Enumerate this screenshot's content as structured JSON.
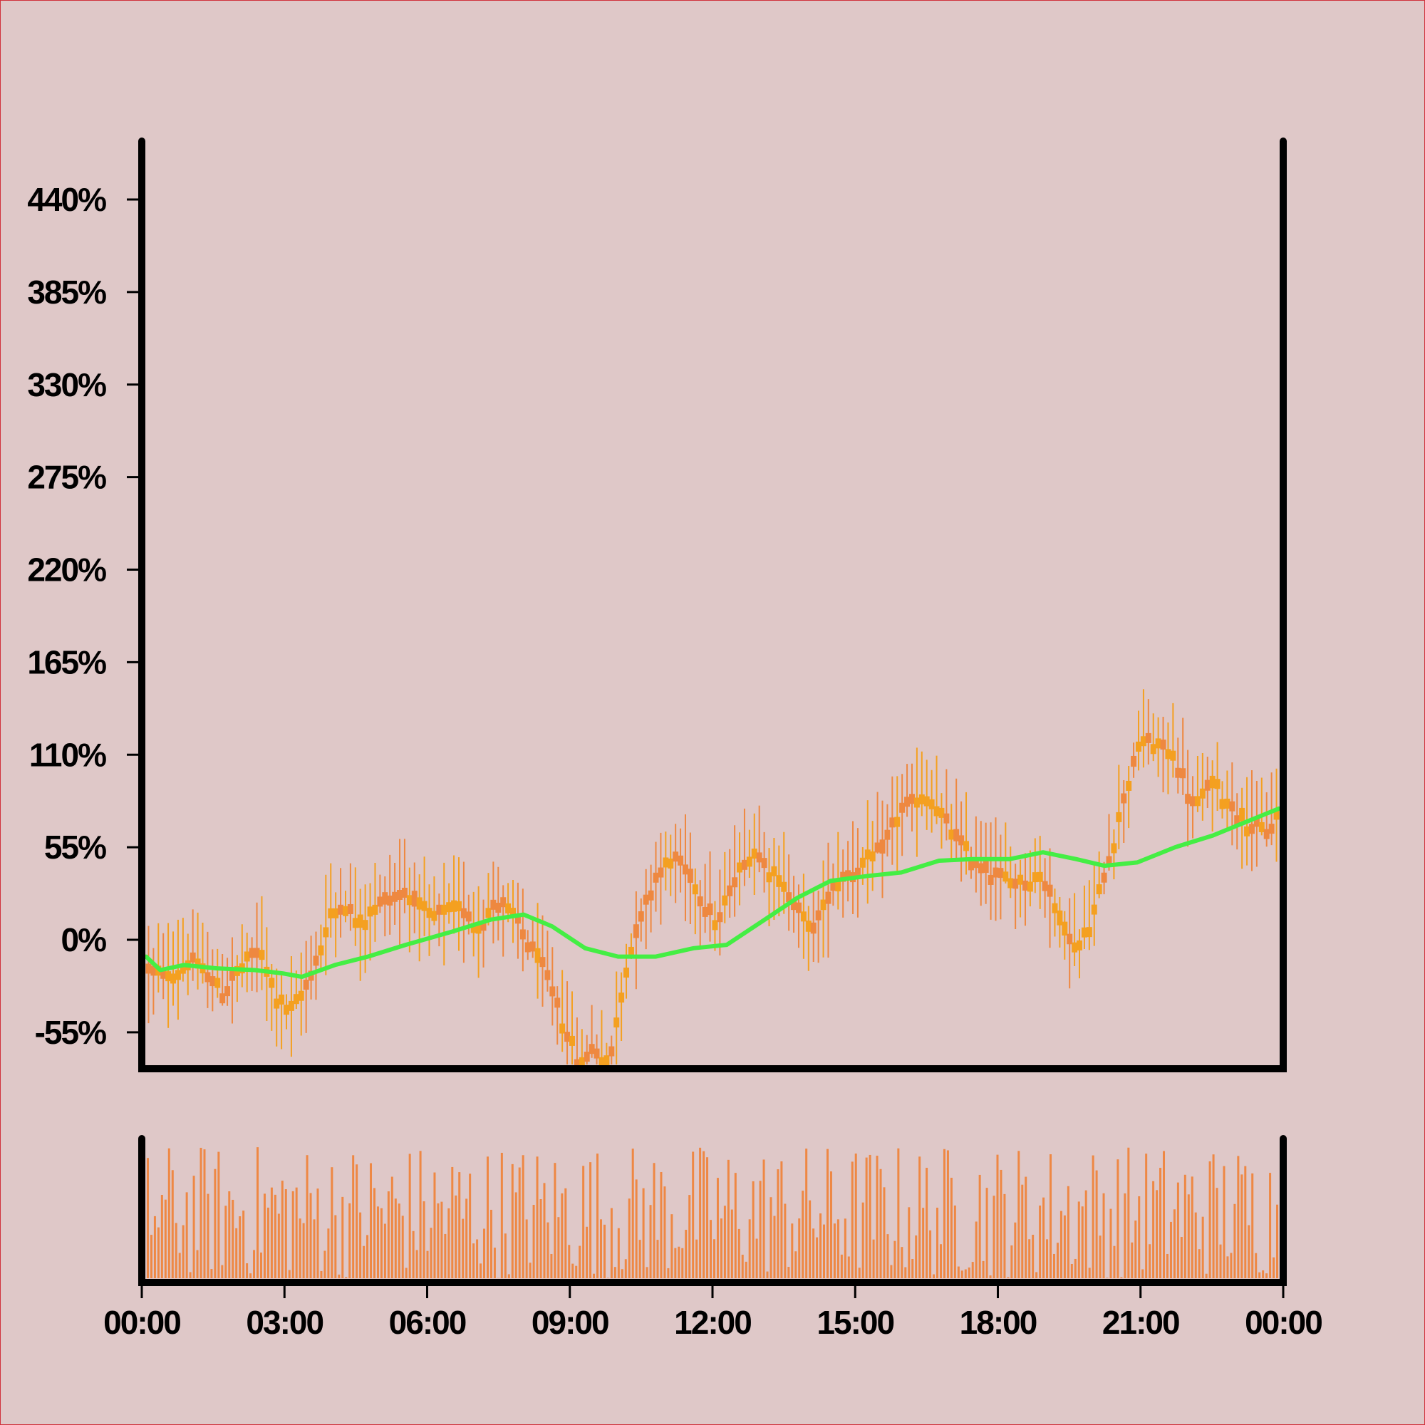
{
  "chart_data": {
    "type": "candlestick",
    "title": "",
    "xlabel": "",
    "ylabel": "",
    "y_ticks": [
      "440%",
      "385%",
      "330%",
      "275%",
      "220%",
      "165%",
      "110%",
      "55%",
      "0%",
      "-55%"
    ],
    "x_ticks": [
      "00:00",
      "03:00",
      "06:00",
      "09:00",
      "12:00",
      "15:00",
      "18:00",
      "21:00",
      "00:00"
    ],
    "ylim": [
      -77,
      475
    ],
    "xlim_hours": [
      0,
      24
    ],
    "grid": false,
    "legend": "none",
    "price_path": [
      {
        "t": 0.0,
        "v": -15
      },
      {
        "t": 0.5,
        "v": -22
      },
      {
        "t": 0.9,
        "v": -10
      },
      {
        "t": 1.3,
        "v": -20
      },
      {
        "t": 1.6,
        "v": -30
      },
      {
        "t": 2.0,
        "v": -15
      },
      {
        "t": 2.4,
        "v": -5
      },
      {
        "t": 2.8,
        "v": -35
      },
      {
        "t": 3.1,
        "v": -40
      },
      {
        "t": 3.5,
        "v": -20
      },
      {
        "t": 3.9,
        "v": 15
      },
      {
        "t": 4.2,
        "v": 25
      },
      {
        "t": 4.5,
        "v": 10
      },
      {
        "t": 5.0,
        "v": 25
      },
      {
        "t": 5.5,
        "v": 30
      },
      {
        "t": 6.0,
        "v": 15
      },
      {
        "t": 6.6,
        "v": 20
      },
      {
        "t": 7.0,
        "v": 10
      },
      {
        "t": 7.5,
        "v": 25
      },
      {
        "t": 7.9,
        "v": 10
      },
      {
        "t": 8.4,
        "v": -15
      },
      {
        "t": 8.8,
        "v": -45
      },
      {
        "t": 9.2,
        "v": -75
      },
      {
        "t": 9.5,
        "v": -60
      },
      {
        "t": 9.8,
        "v": -75
      },
      {
        "t": 10.2,
        "v": -10
      },
      {
        "t": 10.8,
        "v": 40
      },
      {
        "t": 11.2,
        "v": 50
      },
      {
        "t": 11.6,
        "v": 35
      },
      {
        "t": 12.1,
        "v": 10
      },
      {
        "t": 12.5,
        "v": 40
      },
      {
        "t": 12.9,
        "v": 55
      },
      {
        "t": 13.3,
        "v": 40
      },
      {
        "t": 13.8,
        "v": 20
      },
      {
        "t": 14.1,
        "v": 5
      },
      {
        "t": 14.6,
        "v": 35
      },
      {
        "t": 15.1,
        "v": 45
      },
      {
        "t": 15.6,
        "v": 55
      },
      {
        "t": 16.0,
        "v": 80
      },
      {
        "t": 16.6,
        "v": 85
      },
      {
        "t": 17.1,
        "v": 65
      },
      {
        "t": 17.6,
        "v": 45
      },
      {
        "t": 18.0,
        "v": 40
      },
      {
        "t": 18.5,
        "v": 35
      },
      {
        "t": 19.0,
        "v": 40
      },
      {
        "t": 19.4,
        "v": 10
      },
      {
        "t": 19.7,
        "v": -5
      },
      {
        "t": 20.0,
        "v": 10
      },
      {
        "t": 20.4,
        "v": 50
      },
      {
        "t": 20.8,
        "v": 95
      },
      {
        "t": 21.1,
        "v": 120
      },
      {
        "t": 21.5,
        "v": 115
      },
      {
        "t": 21.8,
        "v": 110
      },
      {
        "t": 22.2,
        "v": 80
      },
      {
        "t": 22.6,
        "v": 95
      },
      {
        "t": 23.0,
        "v": 80
      },
      {
        "t": 23.4,
        "v": 70
      },
      {
        "t": 23.8,
        "v": 65
      },
      {
        "t": 24.0,
        "v": 80
      }
    ],
    "series": [
      {
        "type": "line",
        "points": [
          {
            "t": 0.0,
            "v": -10
          },
          {
            "t": 0.3,
            "v": -18
          },
          {
            "t": 0.8,
            "v": -15
          },
          {
            "t": 1.5,
            "v": -17
          },
          {
            "t": 2.3,
            "v": -18
          },
          {
            "t": 2.9,
            "v": -20
          },
          {
            "t": 3.3,
            "v": -22
          },
          {
            "t": 4.0,
            "v": -15
          },
          {
            "t": 4.7,
            "v": -10
          },
          {
            "t": 5.5,
            "v": -3
          },
          {
            "t": 6.5,
            "v": 5
          },
          {
            "t": 7.3,
            "v": 12
          },
          {
            "t": 8.0,
            "v": 15
          },
          {
            "t": 8.6,
            "v": 8
          },
          {
            "t": 9.3,
            "v": -5
          },
          {
            "t": 10.0,
            "v": -10
          },
          {
            "t": 10.8,
            "v": -10
          },
          {
            "t": 11.6,
            "v": -5
          },
          {
            "t": 12.3,
            "v": -3
          },
          {
            "t": 13.0,
            "v": 10
          },
          {
            "t": 13.8,
            "v": 25
          },
          {
            "t": 14.5,
            "v": 35
          },
          {
            "t": 15.3,
            "v": 38
          },
          {
            "t": 16.0,
            "v": 40
          },
          {
            "t": 16.8,
            "v": 47
          },
          {
            "t": 17.5,
            "v": 48
          },
          {
            "t": 18.3,
            "v": 48
          },
          {
            "t": 19.0,
            "v": 52
          },
          {
            "t": 19.7,
            "v": 48
          },
          {
            "t": 20.3,
            "v": 44
          },
          {
            "t": 21.0,
            "v": 46
          },
          {
            "t": 21.8,
            "v": 55
          },
          {
            "t": 22.6,
            "v": 62
          },
          {
            "t": 23.3,
            "v": 70
          },
          {
            "t": 24.0,
            "v": 78
          }
        ]
      },
      {
        "type": "bar",
        "label": "volume",
        "seed": 7,
        "bar_count": 320
      }
    ],
    "colors": {
      "candle_up": "#f4a020",
      "candle_down": "#ee8840",
      "line": "#44ee44",
      "volume": "#ee8844",
      "axis": "#000000",
      "background": "#dfc8c8",
      "border": "#d0303a"
    }
  }
}
